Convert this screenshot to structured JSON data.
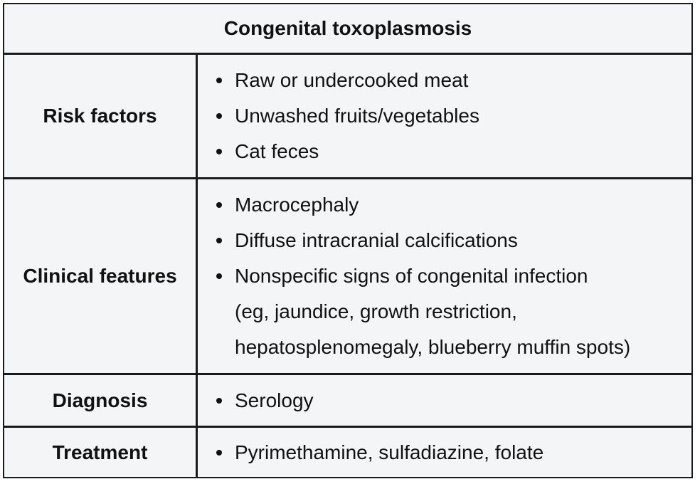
{
  "title": "Congenital toxoplasmosis",
  "rows": [
    {
      "label": "Risk factors",
      "items": [
        {
          "text": "Raw or undercooked meat"
        },
        {
          "text": "Unwashed fruits/vegetables"
        },
        {
          "text": "Cat feces"
        }
      ]
    },
    {
      "label": "Clinical features",
      "items": [
        {
          "text": "Macrocephaly"
        },
        {
          "text": "Diffuse intracranial calcifications"
        },
        {
          "text": "Nonspecific signs of congenital infection",
          "cont1": "(eg, jaundice, growth restriction,",
          "cont2": "hepatosplenomegaly, blueberry muffin spots)"
        }
      ]
    },
    {
      "label": "Diagnosis",
      "items": [
        {
          "text": "Serology"
        }
      ]
    },
    {
      "label": "Treatment",
      "items": [
        {
          "text": "Pyrimethamine, sulfadiazine, folate"
        }
      ]
    }
  ]
}
